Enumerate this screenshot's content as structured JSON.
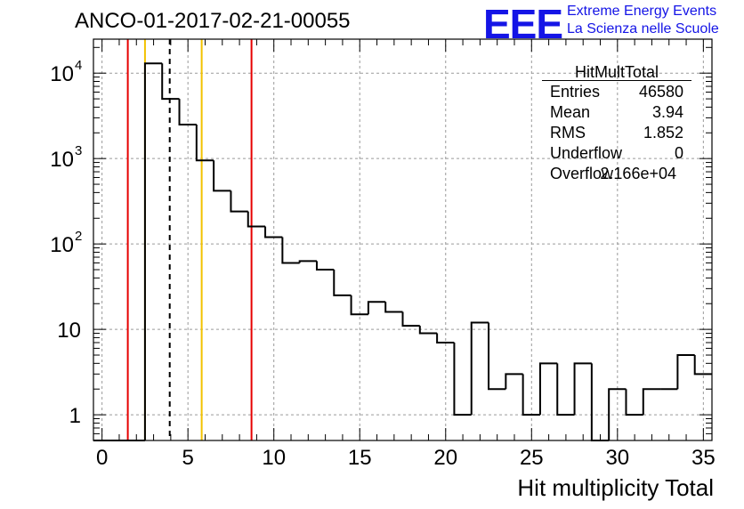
{
  "page": {
    "title": "ANCO-01-2017-02-21-00055",
    "logo": {
      "mark": "EEE",
      "line1": "Extreme Energy Events",
      "line2": "La Scienza nelle Scuole"
    }
  },
  "stats": {
    "title": "HitMultTotal",
    "rows": [
      {
        "key": "Entries",
        "value": "46580"
      },
      {
        "key": "Mean",
        "value": "3.94"
      },
      {
        "key": "RMS",
        "value": "1.852"
      },
      {
        "key": "Underflow",
        "value": "0"
      },
      {
        "key": "Overflow",
        "value": "2.166e+04"
      }
    ]
  },
  "chart_data": {
    "type": "histogram",
    "title": "ANCO-01-2017-02-21-00055",
    "xlabel": "Hit multiplicity Total",
    "ylabel": "",
    "xlim": [
      -0.5,
      35.5
    ],
    "ylim": [
      0.5,
      25000
    ],
    "yscale": "log",
    "grid": true,
    "bin_width": 1,
    "bin_centers": [
      0,
      1,
      2,
      3,
      4,
      5,
      6,
      7,
      8,
      9,
      10,
      11,
      12,
      13,
      14,
      15,
      16,
      17,
      18,
      19,
      20,
      21,
      22,
      23,
      24,
      25,
      26,
      27,
      28,
      29,
      30,
      31,
      32,
      33,
      34,
      35
    ],
    "counts": [
      0,
      0,
      0,
      13000,
      5000,
      2500,
      950,
      420,
      240,
      160,
      120,
      60,
      63,
      50,
      25,
      15,
      21,
      16,
      11,
      9,
      7,
      1,
      12,
      2,
      3,
      1,
      4,
      1,
      4,
      0,
      2,
      1,
      2,
      2,
      5,
      3
    ],
    "xticks": [
      0,
      5,
      10,
      15,
      20,
      25,
      30,
      35
    ],
    "xtick_labels": [
      "0",
      "5",
      "10",
      "15",
      "20",
      "25",
      "30",
      "35"
    ],
    "ytick_values": [
      1,
      10,
      100,
      1000,
      10000
    ],
    "ytick_labels": [
      {
        "base": "1",
        "exp": ""
      },
      {
        "base": "10",
        "exp": ""
      },
      {
        "base": "10",
        "exp": "2"
      },
      {
        "base": "10",
        "exp": "3"
      },
      {
        "base": "10",
        "exp": "4"
      }
    ],
    "vertical_lines": [
      {
        "x": 1.5,
        "color": "#e60000",
        "style": "solid"
      },
      {
        "x": 2.5,
        "color": "#f2c200",
        "style": "solid"
      },
      {
        "x": 3.94,
        "color": "#000000",
        "style": "dashed"
      },
      {
        "x": 5.8,
        "color": "#f2c200",
        "style": "solid"
      },
      {
        "x": 8.7,
        "color": "#e60000",
        "style": "solid"
      }
    ]
  }
}
